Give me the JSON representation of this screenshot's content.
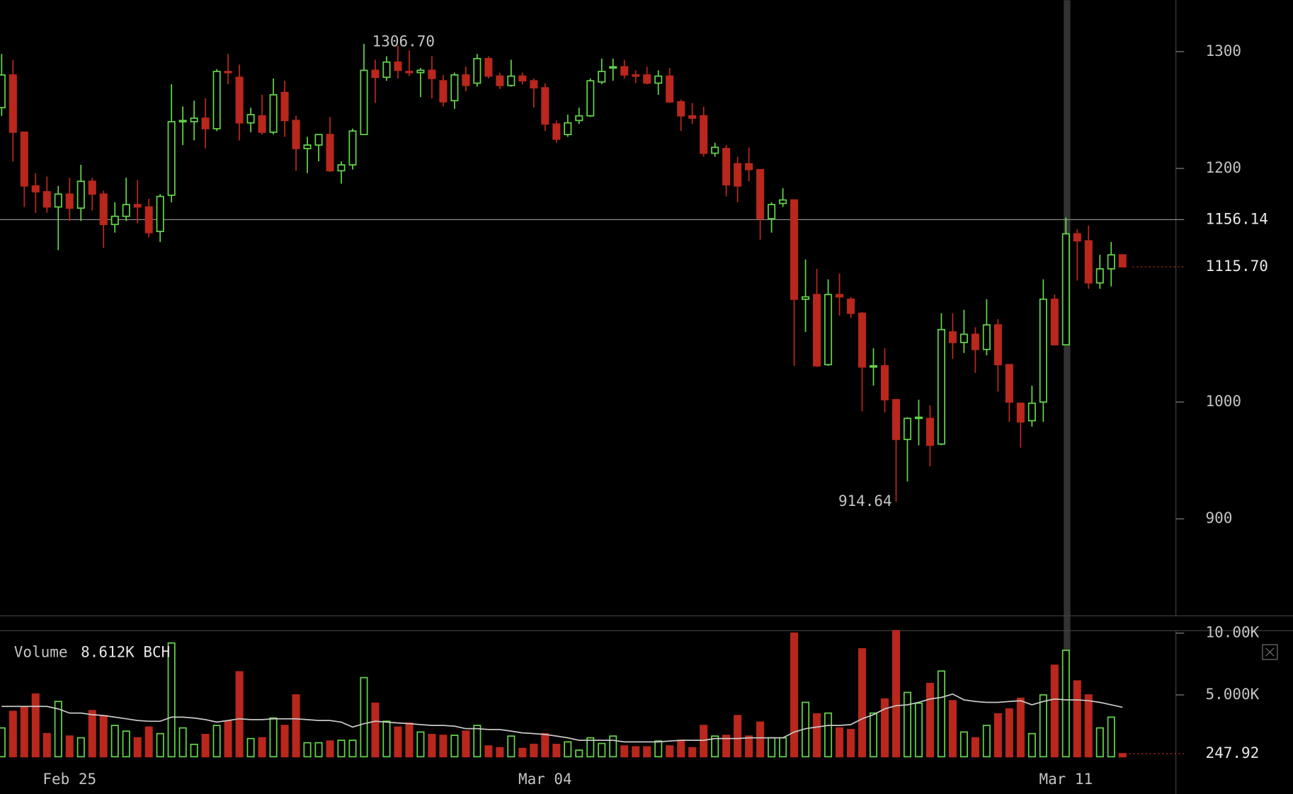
{
  "chart_data": [
    {
      "type": "candlestick",
      "categories": [
        null,
        null,
        null,
        null,
        null,
        null,
        "Feb 25",
        null,
        null,
        null,
        null,
        null,
        null,
        null,
        null,
        null,
        null,
        null,
        null,
        null,
        null,
        null,
        null,
        null,
        null,
        null,
        null,
        null,
        null,
        null,
        null,
        null,
        null,
        null,
        null,
        null,
        null,
        null,
        null,
        null,
        null,
        null,
        null,
        null,
        null,
        null,
        null,
        null,
        "Mar 04",
        null,
        null,
        null,
        null,
        null,
        null,
        null,
        null,
        null,
        null,
        null,
        null,
        null,
        null,
        null,
        null,
        null,
        null,
        null,
        null,
        null,
        null,
        null,
        null,
        null,
        null,
        null,
        null,
        null,
        null,
        null,
        null,
        null,
        null,
        null,
        null,
        null,
        null,
        null,
        null,
        null,
        null,
        null,
        null,
        null,
        "Mar 11",
        null,
        null,
        null,
        null,
        null
      ],
      "open": [
        1252,
        1280,
        1231,
        1185,
        1180,
        1167,
        1178,
        1166,
        1189,
        1178,
        1152,
        1159,
        1169,
        1167,
        1146,
        1177,
        1240,
        1240,
        1243,
        1234,
        1283,
        1278,
        1239,
        1245,
        1231,
        1265,
        1241,
        1217,
        1220,
        1229,
        1198,
        1203,
        1229,
        1284,
        1278,
        1291,
        1283,
        1282,
        1284,
        1275,
        1258,
        1280,
        1273,
        1294,
        1279,
        1271,
        1279,
        1275,
        1269,
        1238,
        1229,
        1241,
        1245,
        1274,
        1286,
        1287,
        1280,
        1280,
        1273,
        1279,
        1257,
        1245,
        1245,
        1213,
        1217,
        1204,
        1204,
        1199,
        1157,
        1170,
        1173,
        1088,
        1092,
        1032,
        1092,
        1088,
        1076,
        1030,
        1031,
        1002,
        968,
        986,
        986,
        964,
        1060,
        1051,
        1058,
        1045,
        1066,
        1032,
        999,
        984,
        1000,
        1088,
        1049,
        1144,
        1138,
        1102,
        1114,
        1126
      ],
      "high": [
        1298,
        1293,
        1231,
        1196,
        1193,
        1185,
        1192,
        1203,
        1192,
        1181,
        1171,
        1192,
        1190,
        1174,
        1178,
        1272,
        1253,
        1258,
        1260,
        1285,
        1298,
        1289,
        1252,
        1263,
        1277,
        1275,
        1245,
        1227,
        1229,
        1244,
        1206,
        1234,
        1306.7,
        1293,
        1296,
        1305,
        1301,
        1286,
        1296,
        1280,
        1282,
        1287,
        1298,
        1296,
        1282,
        1293,
        1282,
        1277,
        1273,
        1241,
        1246,
        1252,
        1277,
        1294,
        1294,
        1293,
        1284,
        1287,
        1284,
        1286,
        1259,
        1256,
        1253,
        1222,
        1220,
        1210,
        1218,
        1199,
        1171,
        1183,
        1173,
        1122,
        1114,
        1105,
        1110,
        1090,
        1077,
        1046,
        1046,
        1002,
        987,
        1002,
        997,
        1076,
        1076,
        1079,
        1064,
        1088,
        1071,
        1032,
        999,
        1014,
        1105,
        1092,
        1158,
        1148,
        1151,
        1126,
        1137,
        1126
      ],
      "low": [
        1245,
        1206,
        1167,
        1162,
        1162,
        1130,
        1155,
        1155,
        1164,
        1132,
        1145,
        1155,
        1153,
        1141,
        1137,
        1171,
        1220,
        1224,
        1217,
        1232,
        1272,
        1224,
        1231,
        1229,
        1229,
        1227,
        1198,
        1196,
        1206,
        1197,
        1187,
        1199,
        1229,
        1256,
        1275,
        1277,
        1279,
        1261,
        1260,
        1253,
        1251,
        1266,
        1270,
        1277,
        1268,
        1270,
        1272,
        1252,
        1232,
        1222,
        1227,
        1238,
        1244,
        1272,
        1275,
        1277,
        1273,
        1272,
        1263,
        1256,
        1232,
        1238,
        1210,
        1210,
        1176,
        1171,
        1189,
        1139,
        1145,
        1167,
        1031,
        1060,
        1030,
        1031,
        1074,
        1072,
        992,
        1014,
        991,
        914.64,
        932,
        963,
        945,
        963,
        1037,
        1042,
        1025,
        1040,
        1009,
        983,
        961,
        979,
        983,
        1049,
        1049,
        1104,
        1097,
        1097,
        1099,
        1115.7
      ],
      "close": [
        1280,
        1231,
        1185,
        1180,
        1167,
        1178,
        1166,
        1189,
        1178,
        1152,
        1159,
        1169,
        1167,
        1145,
        1176,
        1240,
        1241,
        1243,
        1234,
        1283,
        1282,
        1239,
        1246,
        1231,
        1263,
        1241,
        1217,
        1220,
        1229,
        1198,
        1203,
        1232,
        1284,
        1278,
        1291,
        1284,
        1282,
        1284,
        1277,
        1257,
        1280,
        1271,
        1294,
        1279,
        1271,
        1279,
        1275,
        1269,
        1238,
        1225,
        1239,
        1245,
        1275,
        1283,
        1287,
        1280,
        1279,
        1273,
        1279,
        1257,
        1245,
        1243,
        1213,
        1218,
        1186,
        1185,
        1199,
        1157,
        1169,
        1173,
        1088,
        1090,
        1031,
        1092,
        1090,
        1076,
        1030,
        1031,
        1002,
        968,
        986,
        987,
        963,
        1062,
        1051,
        1058,
        1045,
        1066,
        1032,
        1000,
        983,
        999,
        1088,
        1049,
        1144,
        1138,
        1102,
        1114,
        1126,
        1115.7
      ],
      "up_color": "#62d349",
      "down_color": "#b9271d",
      "ylim": [
        817,
        1344
      ],
      "yticks": [
        900,
        1000,
        1200,
        1300
      ],
      "high_label": "1306.70",
      "crosshair": 1156.14,
      "last_close_label": "1115.70"
    },
    {
      "type": "volume",
      "title": "Volume",
      "legend_value": "8.612K BCH",
      "values": [
        2330,
        3670,
        4000,
        5070,
        1870,
        4470,
        1670,
        1530,
        3730,
        3330,
        2530,
        2070,
        1530,
        2400,
        1870,
        9200,
        2330,
        1000,
        1800,
        2530,
        2870,
        6870,
        1470,
        1530,
        3130,
        2530,
        5000,
        1130,
        1130,
        1270,
        1330,
        1330,
        6400,
        4330,
        2870,
        2400,
        2730,
        2000,
        1800,
        1730,
        1730,
        2070,
        2530,
        870,
        730,
        1670,
        670,
        1000,
        1870,
        1000,
        1200,
        530,
        1530,
        1070,
        1670,
        870,
        800,
        800,
        1270,
        870,
        1330,
        730,
        2530,
        1670,
        1730,
        3330,
        1670,
        2800,
        1530,
        1530,
        10000,
        4400,
        3470,
        3530,
        2330,
        2200,
        8730,
        3530,
        4670,
        10200,
        5200,
        4330,
        5930,
        6930,
        4530,
        2000,
        1530,
        2530,
        3470,
        3870,
        4730,
        1870,
        5000,
        7400,
        8612,
        6130,
        5000,
        2330,
        3200,
        247.92
      ],
      "ma_values": [
        4070,
        4070,
        4070,
        4070,
        4070,
        3870,
        3530,
        3530,
        3400,
        3330,
        3200,
        3070,
        2930,
        2870,
        2870,
        3200,
        3200,
        3130,
        3000,
        2800,
        2930,
        3070,
        3000,
        3000,
        3070,
        3070,
        3070,
        3000,
        2930,
        2930,
        2800,
        2400,
        2670,
        2870,
        2800,
        2730,
        2670,
        2600,
        2530,
        2530,
        2470,
        2270,
        2270,
        2200,
        2200,
        2070,
        1930,
        1870,
        1800,
        1670,
        1530,
        1330,
        1330,
        1330,
        1330,
        1200,
        1200,
        1200,
        1200,
        1270,
        1330,
        1330,
        1330,
        1470,
        1470,
        1470,
        1530,
        1530,
        1530,
        1530,
        2000,
        2270,
        2400,
        2530,
        2530,
        2600,
        3070,
        3400,
        3870,
        4130,
        4200,
        4400,
        4670,
        4800,
        5070,
        4600,
        4470,
        4400,
        4400,
        4470,
        4530,
        4200,
        4470,
        4670,
        4600,
        4600,
        4530,
        4400,
        4200,
        4000
      ],
      "ma_color": "#c8c8c8",
      "ylim": [
        0,
        10200
      ],
      "yticks": [
        {
          "value": 5000,
          "label": "5.000K"
        },
        {
          "value": 10000,
          "label": "10.00K"
        }
      ]
    }
  ]
}
